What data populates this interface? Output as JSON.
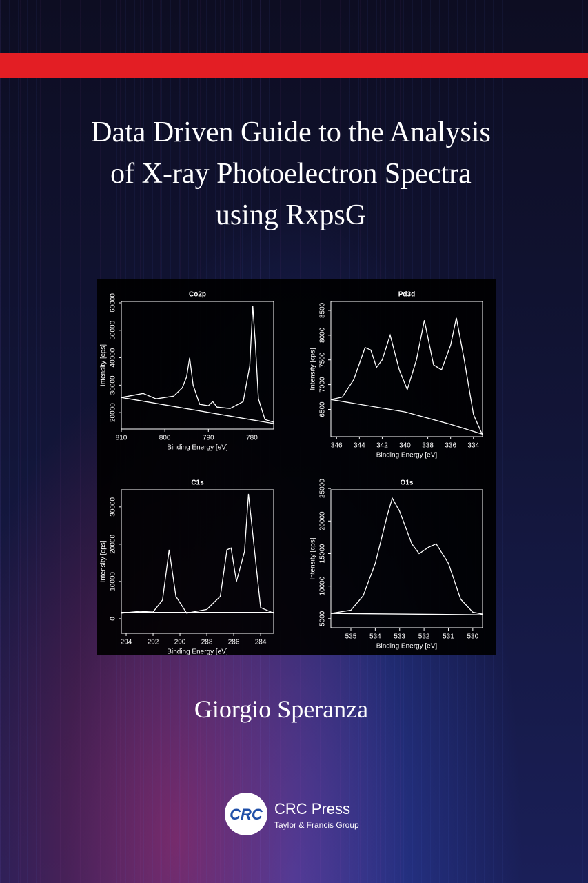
{
  "cover": {
    "title_lines": [
      "Data Driven Guide to the Analysis",
      "of X-ray Photoelectron Spectra",
      "using RxpsG"
    ],
    "author": "Giorgio Speranza",
    "publisher_logo": "CRC",
    "publisher": "CRC Press",
    "publisher_group": "Taylor & Francis Group"
  },
  "chart_data": [
    {
      "type": "line",
      "title": "Co2p",
      "x_label": "Binding Energy [eV]",
      "y_label": "Intensity [cps]",
      "xlim": [
        810,
        775
      ],
      "xticks": [
        810,
        800,
        790,
        780
      ],
      "ylim": [
        14000,
        60500
      ],
      "yticks": [
        20000,
        30000,
        40000,
        50000,
        60000
      ],
      "series": [
        {
          "color": "#ffffff",
          "x": [
            810,
            805,
            802,
            798,
            796,
            795,
            794.3,
            793.5,
            792,
            790,
            789,
            788,
            785,
            782,
            780.5,
            779.8,
            779.2,
            778.5,
            777,
            775
          ],
          "values": [
            25500,
            27000,
            25000,
            26000,
            29000,
            33000,
            40000,
            30000,
            23000,
            22500,
            24000,
            22000,
            21500,
            24000,
            37000,
            59000,
            45000,
            25000,
            17500,
            16500
          ]
        },
        {
          "color": "#ffffff",
          "x": [
            810,
            775
          ],
          "values": [
            25500,
            16000
          ]
        }
      ]
    },
    {
      "type": "line",
      "title": "Pd3d",
      "x_label": "Binding Energy [eV]",
      "y_label": "Intensity [cps]",
      "xlim": [
        346.5,
        333.2
      ],
      "xticks": [
        346,
        344,
        342,
        340,
        338,
        336,
        334
      ],
      "ylim": [
        5950,
        8680
      ],
      "yticks": [
        6500,
        7000,
        7500,
        8000,
        8500
      ],
      "series": [
        {
          "color": "#ffffff",
          "x": [
            346.5,
            345.5,
            344.5,
            343.5,
            343,
            342.5,
            342,
            341.3,
            340.5,
            339.8,
            339,
            338.3,
            337.5,
            336.8,
            336,
            335.5,
            334.8,
            334,
            333.2
          ],
          "values": [
            6700,
            6750,
            7100,
            7750,
            7700,
            7350,
            7500,
            8000,
            7300,
            6900,
            7500,
            8300,
            7400,
            7300,
            7800,
            8350,
            7500,
            6400,
            5980
          ]
        },
        {
          "color": "#ffffff",
          "x": [
            346.5,
            340,
            336,
            333.2
          ],
          "values": [
            6700,
            6450,
            6200,
            6000
          ]
        }
      ]
    },
    {
      "type": "line",
      "title": "C1s",
      "x_label": "Binding Energy [eV]",
      "y_label": "Intensity [cps]",
      "xlim": [
        294.36,
        283.03
      ],
      "xticks": [
        294,
        292,
        290,
        288,
        286,
        284
      ],
      "ylim": [
        -3900,
        34600
      ],
      "yticks": [
        0,
        10000,
        20000,
        30000
      ],
      "series": [
        {
          "color": "#ffffff",
          "x": [
            294.36,
            293,
            292,
            291.3,
            290.8,
            290.3,
            289.5,
            288,
            287,
            286.5,
            286.2,
            285.8,
            285.2,
            284.9,
            284.5,
            284,
            283.03
          ],
          "values": [
            1500,
            2000,
            1800,
            5000,
            18500,
            6000,
            1500,
            2500,
            6000,
            18500,
            19000,
            10000,
            18000,
            33500,
            20000,
            3000,
            1500
          ]
        },
        {
          "color": "#ffffff",
          "x": [
            294.36,
            283.03
          ],
          "values": [
            1700,
            1700
          ]
        }
      ]
    },
    {
      "type": "line",
      "title": "O1s",
      "x_label": "Binding Energy [eV]",
      "y_label": "Intensity [cps]",
      "xlim": [
        535.82,
        529.6
      ],
      "xticks": [
        535,
        534,
        533,
        532,
        531,
        530
      ],
      "ylim": [
        3600,
        24800
      ],
      "yticks": [
        5000,
        10000,
        15000,
        20000,
        25000
      ],
      "series": [
        {
          "color": "#ffffff",
          "x": [
            535.82,
            535,
            534.5,
            534,
            533.5,
            533.3,
            533,
            532.5,
            532.2,
            531.8,
            531.5,
            531,
            530.5,
            530,
            529.6
          ],
          "values": [
            5800,
            6300,
            8500,
            13500,
            21000,
            23500,
            21500,
            16500,
            15000,
            16000,
            16500,
            13500,
            8000,
            6000,
            5700
          ]
        },
        {
          "color": "#ffffff",
          "x": [
            535.82,
            529.6
          ],
          "values": [
            5800,
            5600
          ]
        }
      ]
    }
  ]
}
